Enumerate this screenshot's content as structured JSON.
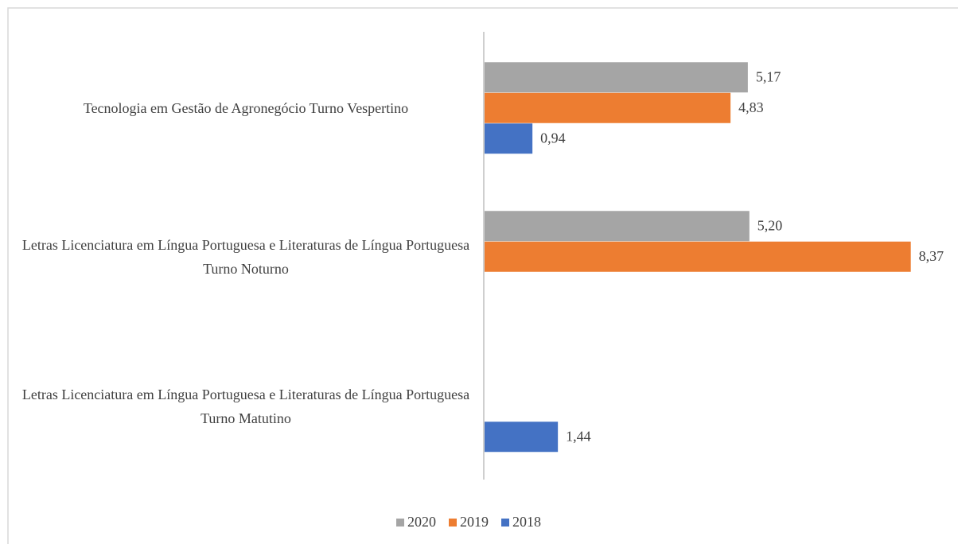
{
  "chart_data": {
    "type": "barh",
    "categories": [
      "Tecnologia em Gestão de Agronegócio Turno Vespertino",
      "Letras Licenciatura em Língua Portuguesa e Literaturas de Língua Portuguesa Turno Noturno",
      "Letras Licenciatura em Língua Portuguesa e Literaturas de Língua Portuguesa Turno Matutino"
    ],
    "series": [
      {
        "name": "2020",
        "color": "#a5a5a5",
        "values": [
          5.17,
          5.2,
          null
        ],
        "value_labels": [
          "5,17",
          "5,20",
          null
        ]
      },
      {
        "name": "2019",
        "color": "#ed7d31",
        "values": [
          4.83,
          8.37,
          null
        ],
        "value_labels": [
          "4,83",
          "8,37",
          null
        ]
      },
      {
        "name": "2018",
        "color": "#4472c4",
        "values": [
          0.94,
          null,
          1.44
        ],
        "value_labels": [
          "0,94",
          null,
          "1,44"
        ]
      }
    ],
    "legend": "bottom"
  }
}
